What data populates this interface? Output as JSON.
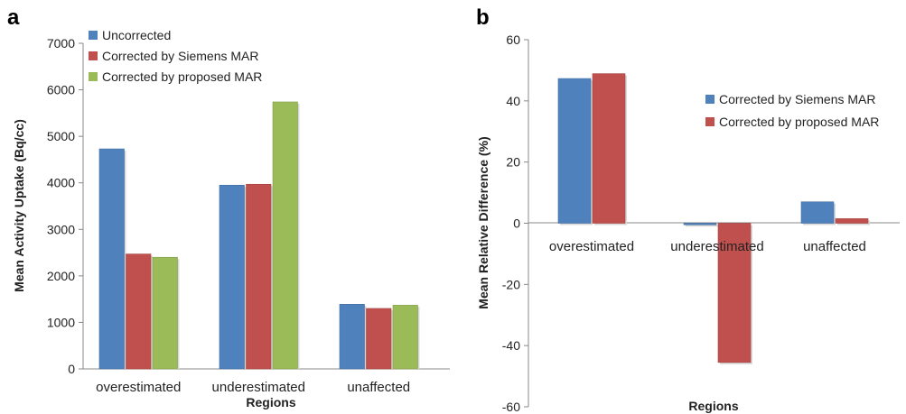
{
  "chart_data": [
    {
      "panel_label": "a",
      "type": "bar",
      "xlabel": "Regions",
      "ylabel": "Mean Activity Uptake (Bq/cc)",
      "ylim": [
        0,
        7000
      ],
      "yticks": [
        0,
        1000,
        2000,
        3000,
        4000,
        5000,
        6000,
        7000
      ],
      "grid": false,
      "legend_position": "top-left",
      "categories": [
        "overestimated",
        "underestimated",
        "unaffected"
      ],
      "series": [
        {
          "name": "Uncorrected",
          "color": "#4f81bd",
          "values": [
            4730,
            3950,
            1390
          ]
        },
        {
          "name": "Corrected by Siemens MAR",
          "color": "#c0504d",
          "values": [
            2470,
            3970,
            1300
          ]
        },
        {
          "name": "Corrected by proposed MAR",
          "color": "#9bbb59",
          "values": [
            2400,
            5740,
            1370
          ]
        }
      ]
    },
    {
      "panel_label": "b",
      "type": "bar",
      "xlabel": "Regions",
      "ylabel": "Mean Relative Difference (%)",
      "ylim": [
        -60,
        60
      ],
      "yticks": [
        -60,
        -40,
        -20,
        0,
        20,
        40,
        60
      ],
      "grid": false,
      "legend_position": "right",
      "categories": [
        "overestimated",
        "underestimated",
        "unaffected"
      ],
      "series": [
        {
          "name": "Corrected by Siemens MAR",
          "color": "#4f81bd",
          "values": [
            47.3,
            -0.5,
            7.0
          ]
        },
        {
          "name": "Corrected by proposed MAR",
          "color": "#c0504d",
          "values": [
            48.9,
            -45.5,
            1.5
          ]
        }
      ]
    }
  ]
}
